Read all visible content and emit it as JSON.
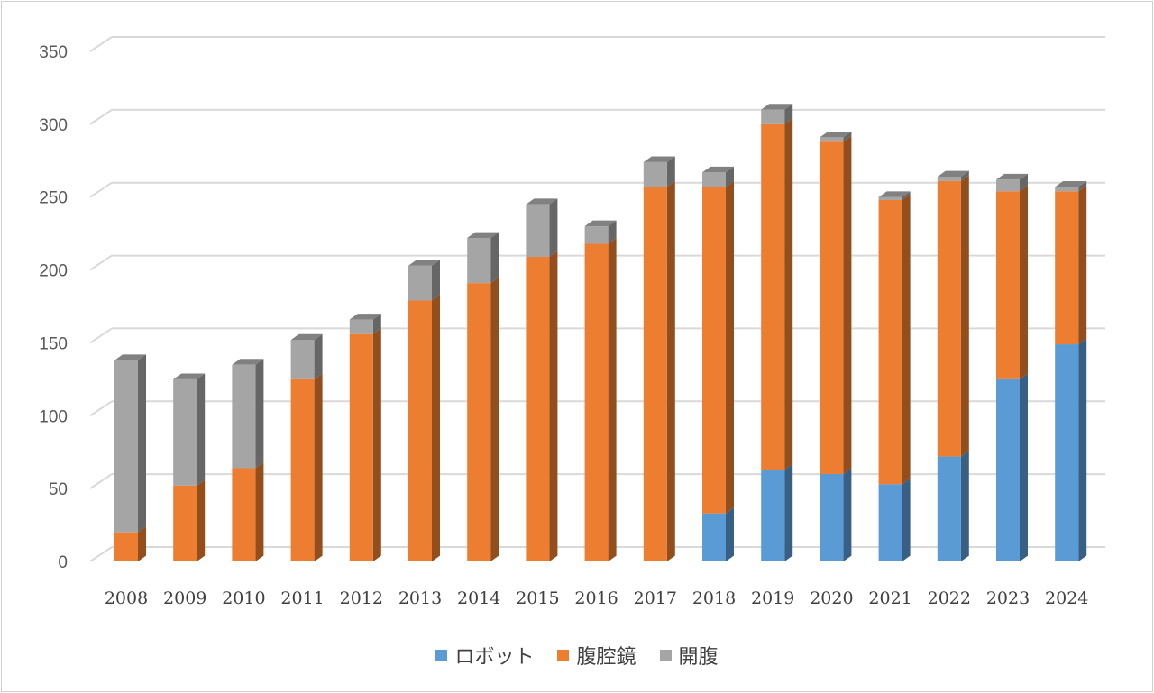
{
  "chart_data": {
    "type": "bar",
    "stacked": true,
    "style": "3d-column",
    "categories": [
      "2008",
      "2009",
      "2010",
      "2011",
      "2012",
      "2013",
      "2014",
      "2015",
      "2016",
      "2017",
      "2018",
      "2019",
      "2020",
      "2021",
      "2022",
      "2023",
      "2024"
    ],
    "series": [
      {
        "name": "ロボット",
        "color": "#5b9bd5",
        "values": [
          0,
          0,
          0,
          0,
          0,
          0,
          0,
          0,
          0,
          0,
          33,
          63,
          60,
          53,
          72,
          125,
          149
        ]
      },
      {
        "name": "腹腔鏡",
        "color": "#ed7d31",
        "values": [
          20,
          52,
          64,
          125,
          156,
          179,
          191,
          209,
          218,
          257,
          224,
          237,
          228,
          195,
          189,
          129,
          105
        ]
      },
      {
        "name": "開腹",
        "color": "#a5a5a5",
        "values": [
          118,
          73,
          71,
          27,
          10,
          24,
          31,
          36,
          12,
          17,
          10,
          10,
          3,
          2,
          3,
          8,
          3
        ]
      }
    ],
    "yticks": [
      "0",
      "50",
      "100",
      "150",
      "200",
      "250",
      "300",
      "350"
    ],
    "ylim": [
      0,
      350
    ],
    "grid": true,
    "legend_position": "bottom"
  }
}
